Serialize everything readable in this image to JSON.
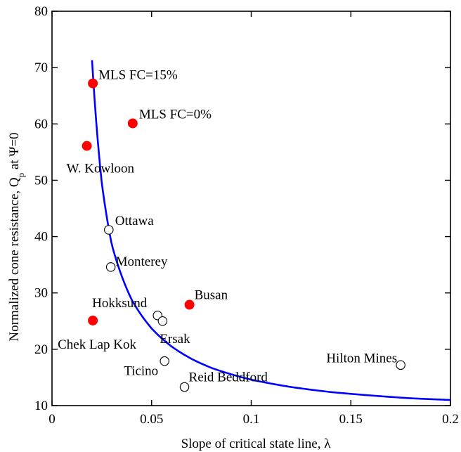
{
  "chart_data": {
    "type": "scatter",
    "title": "",
    "xlabel": "Slope of critical state line, λ",
    "ylabel": {
      "main": "Normalized cone resistance, Q",
      "sub": "p",
      "tail": " at Ψ=0"
    },
    "xlim": [
      0,
      0.2
    ],
    "ylim": [
      10,
      80
    ],
    "x_ticks": [
      0,
      0.05,
      0.1,
      0.15,
      0.2
    ],
    "x_tick_labels": [
      "0",
      "0.05",
      "0.1",
      "0.15",
      "0.2"
    ],
    "y_ticks": [
      10,
      20,
      30,
      40,
      50,
      60,
      70,
      80
    ],
    "y_tick_labels": [
      "10",
      "20",
      "30",
      "40",
      "50",
      "60",
      "70",
      "80"
    ],
    "grid": false,
    "series": [
      {
        "marker": "filled-circle",
        "color": "#ff0000",
        "points": [
          {
            "x": 0.0205,
            "y": 67.2,
            "label": "MLS FC=15%"
          },
          {
            "x": 0.0405,
            "y": 60.1,
            "label": "MLS FC=0%"
          },
          {
            "x": 0.0175,
            "y": 56.1,
            "label": "W. Kowloon"
          },
          {
            "x": 0.069,
            "y": 27.9,
            "label": "Busan"
          },
          {
            "x": 0.0205,
            "y": 25.1,
            "label": "Chek Lap Kok"
          }
        ]
      },
      {
        "marker": "open-circle",
        "color": "#000000",
        "points": [
          {
            "x": 0.0285,
            "y": 41.2,
            "label": "Ottawa"
          },
          {
            "x": 0.0295,
            "y": 34.6,
            "label": "Monterey"
          },
          {
            "x": 0.053,
            "y": 26.0,
            "label": "Hokksund"
          },
          {
            "x": 0.0555,
            "y": 25.0,
            "label": "Ersak"
          },
          {
            "x": 0.0565,
            "y": 17.9,
            "label": "Ticino"
          },
          {
            "x": 0.0665,
            "y": 13.3,
            "label": "Reid Beddford"
          },
          {
            "x": 0.175,
            "y": 17.2,
            "label": "Hilton Mines"
          }
        ]
      }
    ],
    "fit_curve": {
      "type": "line",
      "color": "#0000ff",
      "x_start": 0.0201,
      "x_end": 0.2,
      "points": [
        {
          "x": 0.0201,
          "y": 71.3
        },
        {
          "x": 0.025,
          "y": 49.5
        },
        {
          "x": 0.03,
          "y": 38.6
        },
        {
          "x": 0.04,
          "y": 28.8
        },
        {
          "x": 0.05,
          "y": 23.7
        },
        {
          "x": 0.06,
          "y": 20.5
        },
        {
          "x": 0.07,
          "y": 18.3
        },
        {
          "x": 0.08,
          "y": 16.7
        },
        {
          "x": 0.1,
          "y": 14.6
        },
        {
          "x": 0.12,
          "y": 13.3
        },
        {
          "x": 0.14,
          "y": 12.4
        },
        {
          "x": 0.16,
          "y": 11.8
        },
        {
          "x": 0.18,
          "y": 11.3
        },
        {
          "x": 0.2,
          "y": 11.0
        }
      ]
    }
  }
}
